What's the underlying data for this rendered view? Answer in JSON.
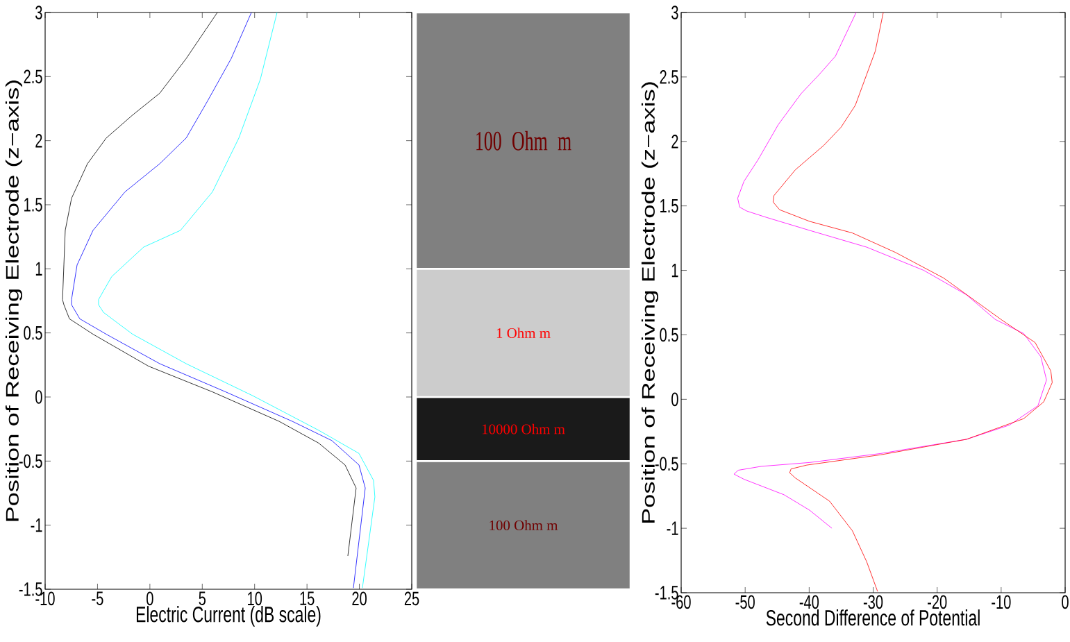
{
  "chart_data": [
    {
      "type": "line",
      "xlabel": "Electric Current (dB scale)",
      "ylabel": "Position of Receiving Electrode (z−axis)",
      "xlim": [
        -10,
        25
      ],
      "ylim": [
        -1.5,
        3
      ],
      "xticks": [
        -10,
        -5,
        0,
        5,
        10,
        15,
        20,
        25
      ],
      "yticks": [
        -1.5,
        -1,
        -0.5,
        0,
        0.5,
        1,
        1.5,
        2,
        2.5,
        3
      ],
      "marker": "none",
      "series": [
        {
          "color": "#000000",
          "x": [
            6.44,
            3.46,
            0.94,
            -1.65,
            -4.17,
            -5.96,
            -7.48,
            -8.08,
            -8.21,
            -8.34,
            -8.21,
            -7.68,
            -5.43,
            -0.12,
            5.97,
            12.34,
            16.12,
            18.63,
            19.69,
            18.9
          ],
          "values": [
            3.0,
            2.64,
            2.37,
            2.2,
            2.02,
            1.82,
            1.55,
            1.3,
            1.03,
            0.76,
            0.72,
            0.61,
            0.49,
            0.24,
            0.04,
            -0.19,
            -0.36,
            -0.53,
            -0.71,
            -1.24
          ]
        },
        {
          "color": "#0000ff",
          "x": [
            9.69,
            7.76,
            5.51,
            3.46,
            0.94,
            -2.38,
            -5.43,
            -6.95,
            -7.48,
            -7.48,
            -6.69,
            -4.17,
            0.94,
            7.23,
            13.6,
            17.37,
            19.96,
            20.56,
            19.43
          ],
          "values": [
            3.0,
            2.64,
            2.31,
            2.02,
            1.82,
            1.6,
            1.3,
            1.03,
            0.76,
            0.72,
            0.61,
            0.49,
            0.26,
            0.04,
            -0.19,
            -0.34,
            -0.53,
            -0.71,
            -1.49
          ]
        },
        {
          "color": "#00ffff",
          "x": [
            12.14,
            10.55,
            8.49,
            5.97,
            2.92,
            -0.59,
            -3.64,
            -4.9,
            -4.9,
            -4.43,
            -1.65,
            3.46,
            9.82,
            16.12,
            19.96,
            21.35,
            21.48,
            20.29
          ],
          "values": [
            3.0,
            2.48,
            2.02,
            1.6,
            1.3,
            1.17,
            0.94,
            0.76,
            0.72,
            0.66,
            0.49,
            0.26,
            0.01,
            -0.26,
            -0.44,
            -0.65,
            -0.78,
            -1.49
          ]
        }
      ]
    },
    {
      "type": "bar",
      "categories": [
        null
      ],
      "ylim": [
        -1.5,
        3
      ],
      "tick_labels": false,
      "series": [
        {
          "name": "100 Ohm m",
          "color": "#808080",
          "base": [
            -1.5
          ],
          "values": [
            1
          ]
        },
        {
          "name": "10000 Ohm m",
          "color": "#1a1a1a",
          "base": [
            -0.5
          ],
          "values": [
            0.5
          ]
        },
        {
          "name": "1 Ohm m",
          "color": "#cccccc",
          "base": [
            0
          ],
          "values": [
            1
          ]
        },
        {
          "name": "100 Ohm m",
          "color": "#808080",
          "base": [
            1
          ],
          "values": [
            2
          ]
        }
      ]
    },
    {
      "type": "line",
      "xlabel": "Second Difference of Potential",
      "ylabel": "Position of Receiving Electrode (z−axis)",
      "xlim": [
        -60,
        0
      ],
      "ylim": [
        -1.5,
        3
      ],
      "xticks": [
        -60,
        -50,
        -40,
        -30,
        -20,
        -10,
        0
      ],
      "yticks": [
        -1.5,
        -1,
        -0.5,
        0,
        0.5,
        1,
        1.5,
        2,
        2.5,
        3
      ],
      "marker": "none",
      "series": [
        {
          "color": "#ff00ff",
          "x": [
            -32.66,
            -35.91,
            -38.59,
            -41.27,
            -44.83,
            -47.96,
            -50.19,
            -51.17,
            -50.86,
            -49.74,
            -46.62,
            -39.93,
            -31.01,
            -22.09,
            -15.4,
            -10.94,
            -6.48,
            -3.8,
            -2.91,
            -4.25,
            -8.71,
            -15.4,
            -28.78,
            -39.93,
            -47.51,
            -51.08,
            -51.75,
            -50.19,
            -43.94,
            -39.93,
            -36.45
          ],
          "values": [
            3.0,
            2.66,
            2.51,
            2.37,
            2.13,
            1.86,
            1.69,
            1.56,
            1.49,
            1.46,
            1.41,
            1.31,
            1.18,
            1.0,
            0.81,
            0.62,
            0.51,
            0.33,
            0.15,
            -0.05,
            -0.2,
            -0.31,
            -0.42,
            -0.49,
            -0.52,
            -0.55,
            -0.58,
            -0.62,
            -0.74,
            -0.86,
            -1.0
          ]
        },
        {
          "color": "#ff0000",
          "x": [
            -28.42,
            -29.67,
            -32.79,
            -35.02,
            -37.7,
            -42.16,
            -45.5,
            -45.64,
            -44.61,
            -39.93,
            -33.24,
            -26.55,
            -18.97,
            -10.04,
            -4.69,
            -2.24,
            -2.02,
            -3.35,
            -6.48,
            -15.4,
            -28.78,
            -40.37,
            -42.83,
            -43.05,
            -42.16,
            -36.81,
            -33.24,
            -31.01,
            -29.31
          ],
          "values": [
            3.0,
            2.7,
            2.28,
            2.11,
            1.97,
            1.78,
            1.58,
            1.53,
            1.47,
            1.38,
            1.29,
            1.14,
            0.94,
            0.62,
            0.44,
            0.22,
            0.13,
            -0.02,
            -0.15,
            -0.31,
            -0.43,
            -0.51,
            -0.54,
            -0.57,
            -0.61,
            -0.79,
            -1.02,
            -1.26,
            -1.49
          ]
        }
      ]
    }
  ]
}
